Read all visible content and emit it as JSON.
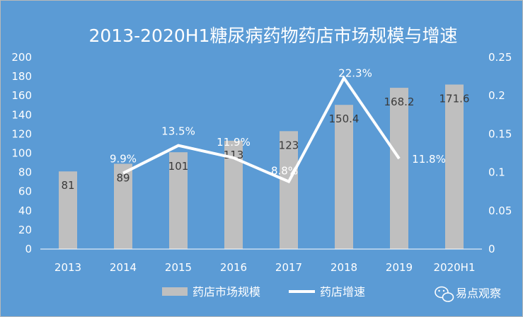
{
  "chart_data": {
    "type": "bar",
    "title": "2013-2020H1糖尿病药物药店市场规模与增速",
    "categories": [
      "2013",
      "2014",
      "2015",
      "2016",
      "2017",
      "2018",
      "2019",
      "2020H1"
    ],
    "series": [
      {
        "name": "药店市场规模",
        "type": "bar",
        "axis": "left",
        "values": [
          81,
          89,
          101,
          113,
          123,
          150.4,
          168.2,
          171.6
        ],
        "labels": [
          "81",
          "89",
          "101",
          "113",
          "123",
          "150.4",
          "168.2",
          "171.6"
        ]
      },
      {
        "name": "药店增速",
        "type": "line",
        "axis": "right",
        "values": [
          null,
          0.099,
          0.135,
          0.119,
          0.088,
          0.223,
          0.118,
          null
        ],
        "labels": [
          "",
          "9.9%",
          "13.5%",
          "11.9%",
          "8.8%",
          "22.3%",
          "11.8%",
          ""
        ]
      }
    ],
    "y_left": {
      "min": 0,
      "max": 200,
      "ticks": [
        0,
        20,
        40,
        60,
        80,
        100,
        120,
        140,
        160,
        180,
        200
      ]
    },
    "y_right": {
      "min": 0,
      "max": 0.25,
      "ticks": [
        "0",
        "0.05",
        "0.1",
        "0.15",
        "0.2",
        "0.25"
      ]
    },
    "grid": false,
    "legend_position": "bottom"
  },
  "watermark": {
    "text": "易点观察",
    "icon": "wechat-icon"
  },
  "colors": {
    "background": "#5b9bd5",
    "bar": "#bfbfbf",
    "line": "#ffffff",
    "axis": "#ffffff",
    "bar_label": "#3a3a3a"
  }
}
